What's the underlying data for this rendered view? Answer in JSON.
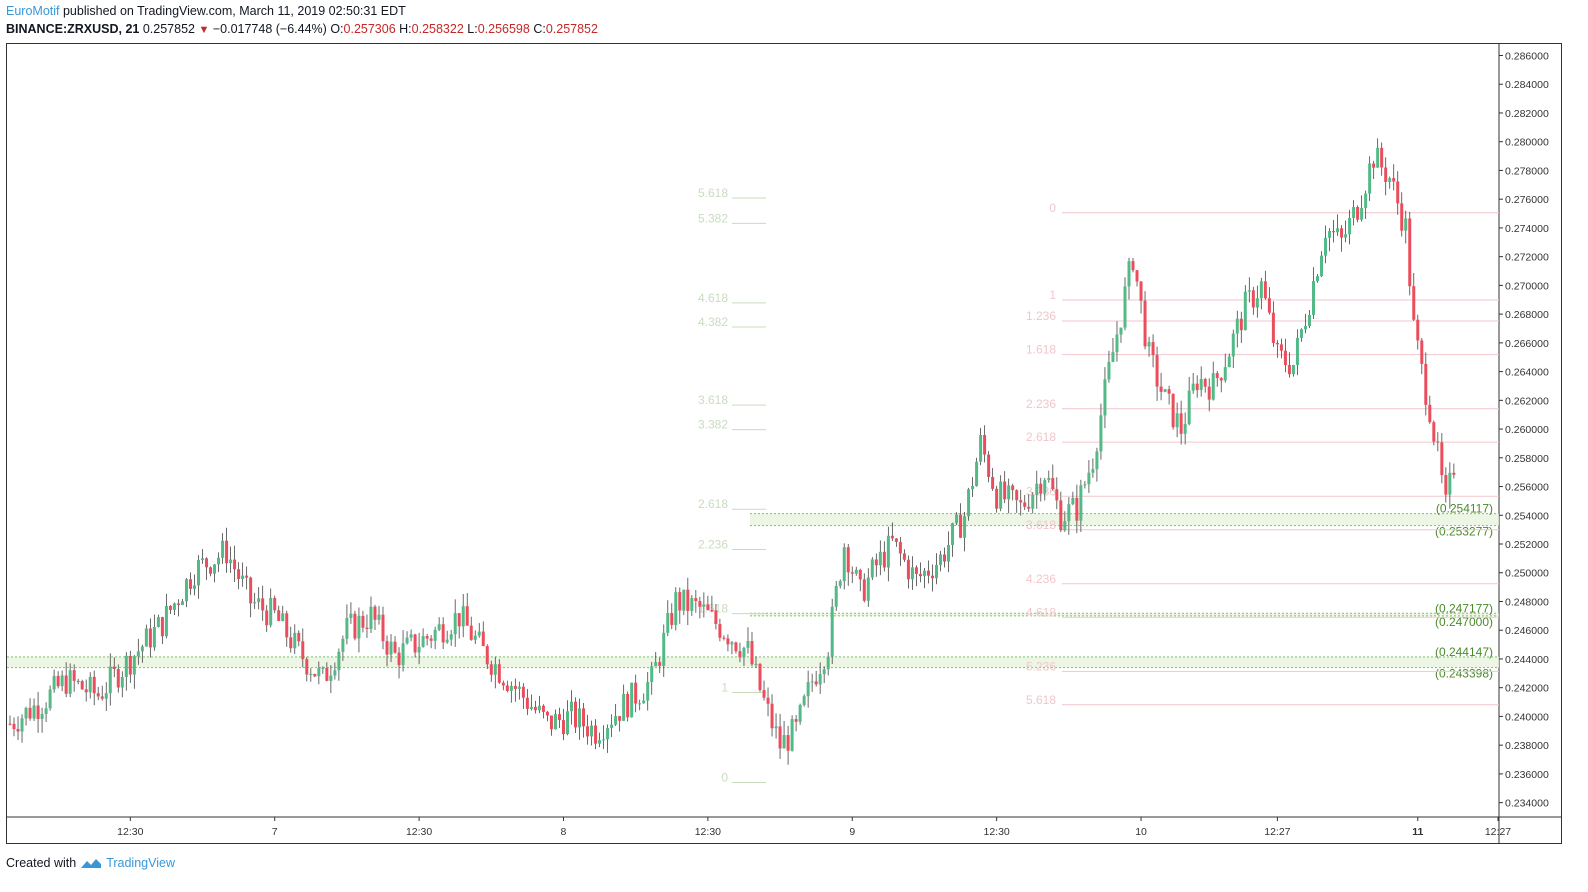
{
  "header": {
    "author": "EuroMotif",
    "published": " published on TradingView.com, March 11, 2019 02:50:31 EDT",
    "symbol": "BINANCE:ZRXUSD, 21",
    "last": "0.257852",
    "change": "−0.017748 (−6.44%)",
    "open_label": "O:",
    "open": "0.257306",
    "high_label": "H:",
    "high": "0.258322",
    "low_label": "L:",
    "low": "0.256598",
    "close_label": "C:",
    "close": "0.257852"
  },
  "footer": {
    "created_with": "Created with",
    "brand": "TradingView"
  },
  "colors": {
    "up": "#53b987",
    "down": "#eb4d5c",
    "fib_green": "#c9dcc0",
    "fib_red": "#f2c6cb",
    "zone_fill": "#e8f3df",
    "zone_line": "#7cc26a",
    "zone_text": "#4a8a2a"
  },
  "chart_data": {
    "type": "candlestick",
    "title": "",
    "ylim": [
      0.233,
      0.2868
    ],
    "y_ticks": [
      "0.286000",
      "0.284000",
      "0.282000",
      "0.280000",
      "0.278000",
      "0.276000",
      "0.274000",
      "0.272000",
      "0.270000",
      "0.268000",
      "0.266000",
      "0.264000",
      "0.262000",
      "0.260000",
      "0.258000",
      "0.256000",
      "0.254000",
      "0.252000",
      "0.250000",
      "0.248000",
      "0.246000",
      "0.244000",
      "0.242000",
      "0.240000",
      "0.238000",
      "0.236000",
      "0.234000"
    ],
    "x_ticks": [
      {
        "label": "12:30",
        "bar": 30,
        "bold": false
      },
      {
        "label": "7",
        "bar": 66,
        "bold": false
      },
      {
        "label": "12:30",
        "bar": 102,
        "bold": false
      },
      {
        "label": "8",
        "bar": 138,
        "bold": false
      },
      {
        "label": "12:30",
        "bar": 174,
        "bold": false
      },
      {
        "label": "9",
        "bar": 210,
        "bold": false
      },
      {
        "label": "12:30",
        "bar": 246,
        "bold": false
      },
      {
        "label": "10",
        "bar": 282,
        "bold": false
      },
      {
        "label": "12:27",
        "bar": 316,
        "bold": false
      },
      {
        "label": "11",
        "bar": 351,
        "bold": true
      },
      {
        "label": "12:27",
        "bar": 371,
        "bold": false
      }
    ],
    "bars": 372,
    "candles_keypoints": [
      [
        0,
        0.2395
      ],
      [
        8,
        0.241
      ],
      [
        14,
        0.2425
      ],
      [
        22,
        0.2415
      ],
      [
        30,
        0.244
      ],
      [
        38,
        0.2465
      ],
      [
        46,
        0.2502
      ],
      [
        54,
        0.2515
      ],
      [
        60,
        0.248
      ],
      [
        66,
        0.247
      ],
      [
        72,
        0.2445
      ],
      [
        78,
        0.2425
      ],
      [
        84,
        0.246
      ],
      [
        90,
        0.247
      ],
      [
        96,
        0.2442
      ],
      [
        104,
        0.2455
      ],
      [
        112,
        0.247
      ],
      [
        118,
        0.2445
      ],
      [
        126,
        0.242
      ],
      [
        134,
        0.2395
      ],
      [
        140,
        0.24
      ],
      [
        146,
        0.239
      ],
      [
        154,
        0.241
      ],
      [
        160,
        0.2425
      ],
      [
        166,
        0.248
      ],
      [
        172,
        0.2475
      ],
      [
        178,
        0.246
      ],
      [
        184,
        0.2445
      ],
      [
        188,
        0.241
      ],
      [
        192,
        0.238
      ],
      [
        196,
        0.239
      ],
      [
        200,
        0.2425
      ],
      [
        204,
        0.245
      ],
      [
        208,
        0.252
      ],
      [
        212,
        0.2485
      ],
      [
        216,
        0.2505
      ],
      [
        220,
        0.252
      ],
      [
        226,
        0.2495
      ],
      [
        232,
        0.251
      ],
      [
        238,
        0.254
      ],
      [
        242,
        0.259
      ],
      [
        246,
        0.2555
      ],
      [
        252,
        0.2545
      ],
      [
        258,
        0.257
      ],
      [
        262,
        0.254
      ],
      [
        266,
        0.2545
      ],
      [
        270,
        0.258
      ],
      [
        274,
        0.264
      ],
      [
        280,
        0.272
      ],
      [
        284,
        0.265
      ],
      [
        288,
        0.262
      ],
      [
        292,
        0.26
      ],
      [
        296,
        0.2635
      ],
      [
        300,
        0.263
      ],
      [
        304,
        0.2655
      ],
      [
        308,
        0.2685
      ],
      [
        312,
        0.27
      ],
      [
        316,
        0.265
      ],
      [
        320,
        0.2645
      ],
      [
        324,
        0.269
      ],
      [
        328,
        0.274
      ],
      [
        332,
        0.273
      ],
      [
        336,
        0.2755
      ],
      [
        340,
        0.279
      ],
      [
        344,
        0.2775
      ],
      [
        348,
        0.274
      ],
      [
        350,
        0.267
      ],
      [
        352,
        0.264
      ],
      [
        354,
        0.2615
      ],
      [
        356,
        0.258
      ],
      [
        358,
        0.2545
      ],
      [
        360,
        0.2575
      ]
    ],
    "fib_left": [
      {
        "label": "5.618",
        "value": 0.27643
      },
      {
        "label": "5.382",
        "value": 0.27466
      },
      {
        "label": "4.618",
        "value": 0.26913
      },
      {
        "label": "4.382",
        "value": 0.26745
      },
      {
        "label": "3.618",
        "value": 0.26201
      },
      {
        "label": "3.382",
        "value": 0.26031
      },
      {
        "label": "2.618",
        "value": 0.25477
      },
      {
        "label": "2.236",
        "value": 0.25197
      },
      {
        "label": "1.618",
        "value": 0.2475
      },
      {
        "label": "1",
        "value": 0.24201
      },
      {
        "label": "0",
        "value": 0.23575
      }
    ],
    "fib_right": [
      {
        "label": "0",
        "value": 0.2754
      },
      {
        "label": "1",
        "value": 0.26933
      },
      {
        "label": "1.236",
        "value": 0.26787
      },
      {
        "label": "1.618",
        "value": 0.26553
      },
      {
        "label": "2.236",
        "value": 0.26176
      },
      {
        "label": "2.618",
        "value": 0.25944
      },
      {
        "label": "3.236",
        "value": 0.25567
      },
      {
        "label": "3.618",
        "value": 0.25334
      },
      {
        "label": "4.236",
        "value": 0.24958
      },
      {
        "label": "4.618",
        "value": 0.24725
      },
      {
        "label": "5.236",
        "value": 0.24348
      },
      {
        "label": "5.618",
        "value": 0.24116
      }
    ],
    "zones": [
      {
        "top": 0.254117,
        "bottom": 0.253277,
        "top_label": "(0.254117)",
        "bottom_label": "(0.253277)"
      },
      {
        "top": 0.247177,
        "bottom": 0.247,
        "top_label": "(0.247177)",
        "bottom_label": "(0.247000)"
      },
      {
        "top": 0.244147,
        "bottom": 0.243398,
        "top_label": "(0.244147)",
        "bottom_label": "(0.243398)"
      }
    ]
  }
}
